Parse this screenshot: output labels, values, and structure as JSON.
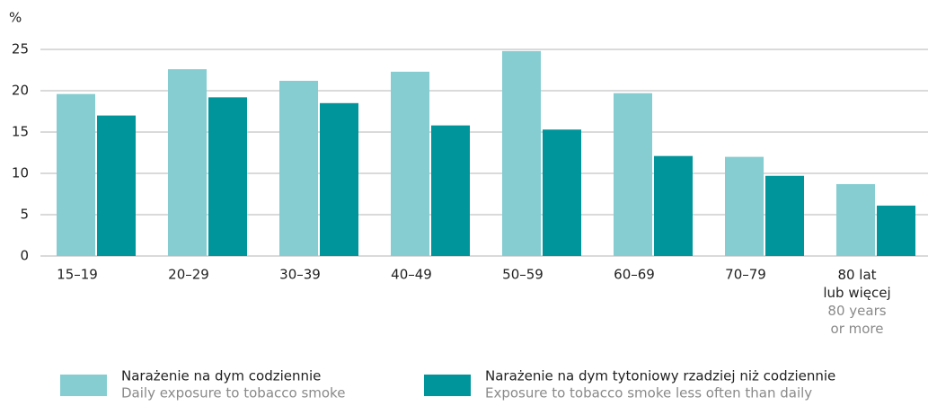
{
  "chart_data": {
    "type": "bar",
    "y_label": "%",
    "categories": [
      "15–19",
      "20–29",
      "30–39",
      "40–49",
      "50–59",
      "60–69",
      "70–79",
      "80 lat lub więcej"
    ],
    "category_translations": [
      null,
      null,
      null,
      null,
      null,
      null,
      null,
      "80 years or more"
    ],
    "series": [
      {
        "name": "Narażenie na dym codziennie",
        "name_en": "Daily exposure to tobacco smoke",
        "color": "#85cdd1",
        "values": [
          19.6,
          22.6,
          21.2,
          22.3,
          24.8,
          19.7,
          12.0,
          8.7
        ]
      },
      {
        "name": "Narażenie na dym tytoniowy rzadziej niż codziennie",
        "name_en": "Exposure to tobacco smoke less often than daily",
        "color": "#00959b",
        "values": [
          17.0,
          19.2,
          18.5,
          15.8,
          15.3,
          12.1,
          9.7,
          6.1
        ]
      }
    ],
    "ylim": [
      0,
      25
    ],
    "yticks": [
      0,
      5,
      10,
      15,
      20,
      25
    ],
    "grid": true
  }
}
